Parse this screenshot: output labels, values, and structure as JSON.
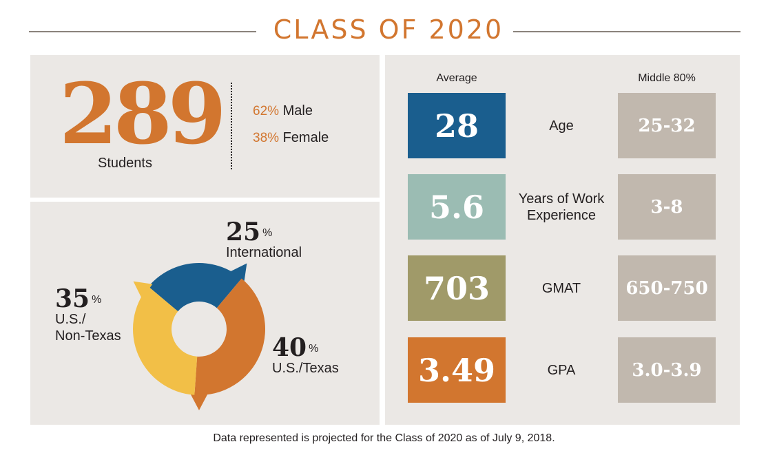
{
  "title": "CLASS OF 2020",
  "students": {
    "count": "289",
    "label": "Students"
  },
  "gender": [
    {
      "pct": "62%",
      "label": "Male"
    },
    {
      "pct": "38%",
      "label": "Female"
    }
  ],
  "columns": {
    "average": "Average",
    "middle": "Middle 80%"
  },
  "stats": [
    {
      "average": "28",
      "label": "Age",
      "range": "25-32",
      "color": "#1a5e8e"
    },
    {
      "average": "5.6",
      "label": "Years of Work Experience",
      "range": "3-8",
      "color": "#9bbcb3"
    },
    {
      "average": "703",
      "label": "GMAT",
      "range": "650-750",
      "color": "#a09a69"
    },
    {
      "average": "3.49",
      "label": "GPA",
      "range": "3.0-3.9",
      "color": "#d2762f"
    }
  ],
  "chart_data": {
    "type": "pie",
    "title": "",
    "categories": [
      "International",
      "U.S./Texas",
      "U.S./Non-Texas"
    ],
    "values": [
      25,
      40,
      35
    ],
    "value_labels": [
      "25",
      "40",
      "35"
    ],
    "unit": "%",
    "category_lines": [
      [
        "International"
      ],
      [
        "U.S./Texas"
      ],
      [
        "U.S./",
        "Non-Texas"
      ]
    ],
    "colors": [
      "#1a5e8e",
      "#d2762f",
      "#f2bf47"
    ]
  },
  "footnote": "Data represented is projected for the Class of 2020 as of July 9, 2018."
}
